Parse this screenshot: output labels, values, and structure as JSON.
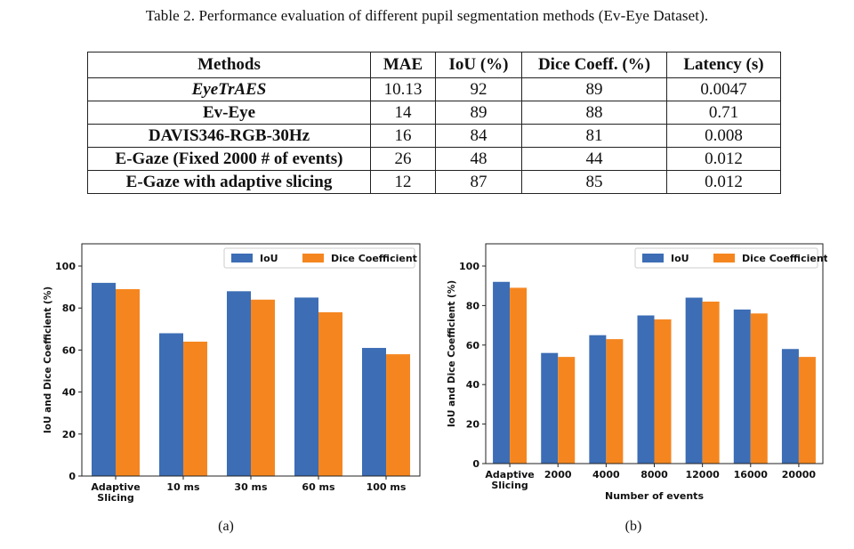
{
  "caption": "Table 2.  Performance evaluation of different pupil segmentation methods (Ev-Eye Dataset).",
  "table": {
    "headers": [
      "Methods",
      "MAE",
      "IoU (%)",
      "Dice Coeff. (%)",
      "Latency (s)"
    ],
    "rows": [
      {
        "method": "EyeTrAES",
        "mae": "10.13",
        "iou": "92",
        "dice": "89",
        "latency": "0.0047"
      },
      {
        "method": "Ev-Eye",
        "mae": "14",
        "iou": "89",
        "dice": "88",
        "latency": "0.71"
      },
      {
        "method": "DAVIS346-RGB-30Hz",
        "mae": "16",
        "iou": "84",
        "dice": "81",
        "latency": "0.008"
      },
      {
        "method": "E-Gaze (Fixed 2000 # of events)",
        "mae": "26",
        "iou": "48",
        "dice": "44",
        "latency": "0.012"
      },
      {
        "method": "E-Gaze with adaptive slicing",
        "mae": "12",
        "iou": "87",
        "dice": "85",
        "latency": "0.012"
      }
    ]
  },
  "colors": {
    "iou": "#3c6db5",
    "dice": "#f5861f"
  },
  "chart_data": [
    {
      "type": "bar",
      "panel_label": "(a)",
      "categories": [
        [
          "Adaptive",
          "Slicing"
        ],
        [
          "10 ms"
        ],
        [
          "30 ms"
        ],
        [
          "60 ms"
        ],
        [
          "100 ms"
        ]
      ],
      "series": [
        {
          "name": "IoU",
          "values": [
            92,
            68,
            88,
            85,
            61
          ]
        },
        {
          "name": "Dice Coefficient",
          "values": [
            89,
            64,
            84,
            78,
            58
          ]
        }
      ],
      "xlabel": "",
      "ylabel": "IoU and Dice Coefficient (%)",
      "ylim": [
        0,
        100
      ],
      "yticks": [
        0,
        20,
        40,
        60,
        80,
        100
      ],
      "legend": "top-right",
      "grid": false
    },
    {
      "type": "bar",
      "panel_label": "(b)",
      "categories": [
        [
          "Adaptive",
          "Slicing"
        ],
        [
          "2000"
        ],
        [
          "4000"
        ],
        [
          "8000"
        ],
        [
          "12000"
        ],
        [
          "16000"
        ],
        [
          "20000"
        ]
      ],
      "series": [
        {
          "name": "IoU",
          "values": [
            92,
            56,
            65,
            75,
            84,
            78,
            58
          ]
        },
        {
          "name": "Dice Coefficient",
          "values": [
            89,
            54,
            63,
            73,
            82,
            76,
            54
          ]
        }
      ],
      "xlabel": "Number of events",
      "ylabel": "IoU and Dice Coefficient (%)",
      "ylim": [
        0,
        100
      ],
      "yticks": [
        0,
        20,
        40,
        60,
        80,
        100
      ],
      "legend": "top-right",
      "grid": false
    }
  ]
}
